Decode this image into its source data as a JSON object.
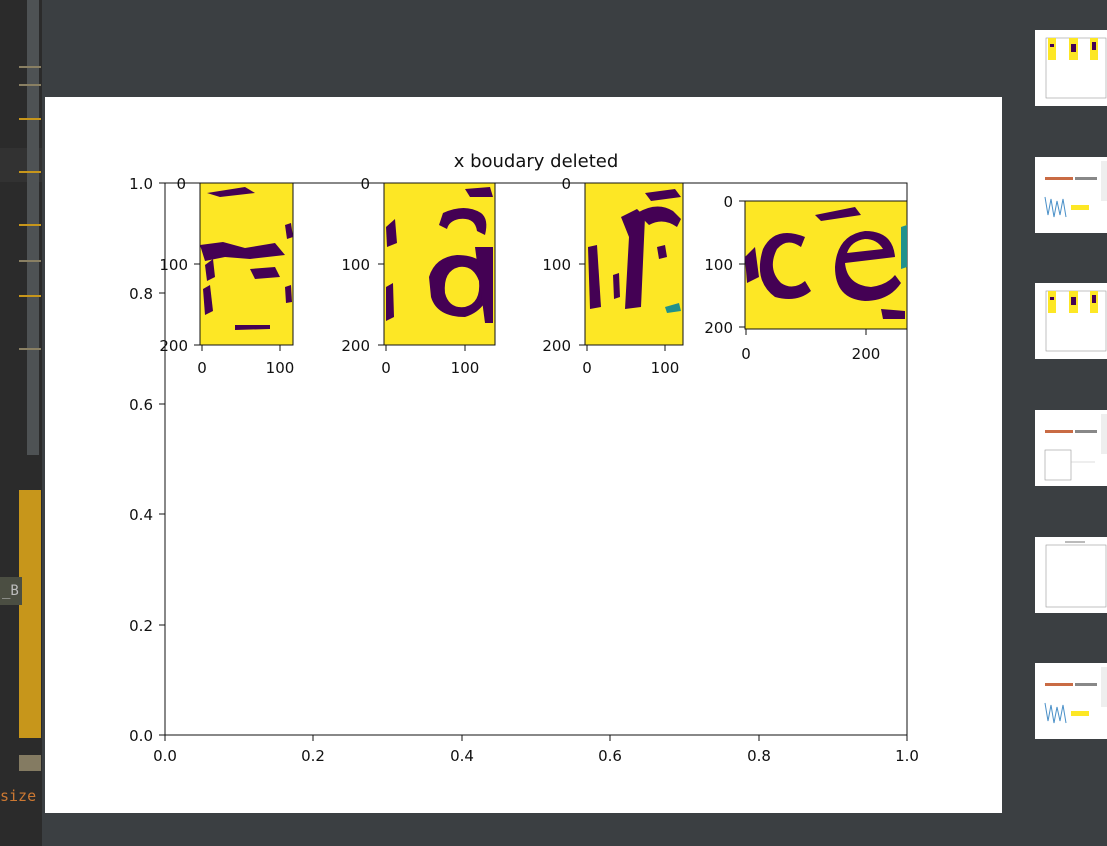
{
  "editor": {
    "fragment_b": "_B",
    "fragment_size": "size"
  },
  "plot": {
    "title": "x boudary deleted",
    "yticks": [
      "1.0",
      "0.8",
      "0.6",
      "0.4",
      "0.2",
      "0.0"
    ],
    "xticks": [
      "0.0",
      "0.2",
      "0.4",
      "0.6",
      "0.8",
      "1.0"
    ],
    "subplots": [
      {
        "yticks": [
          "0",
          "100",
          "200"
        ],
        "xticks": [
          "0",
          "100"
        ]
      },
      {
        "yticks": [
          "0",
          "100",
          "200"
        ],
        "xticks": [
          "0",
          "100"
        ]
      },
      {
        "yticks": [
          "0",
          "100",
          "200"
        ],
        "xticks": [
          "0",
          "100"
        ]
      },
      {
        "yticks": [
          "0",
          "100",
          "200"
        ],
        "xticks": [
          "0",
          "200"
        ]
      }
    ]
  },
  "colors": {
    "viridis_yellow": "#fde725",
    "viridis_purple": "#440154",
    "viridis_teal": "#21918c",
    "background": "#3b3f42",
    "accent_gold": "#c7961b"
  },
  "thumbnails": [
    "thumb-1",
    "thumb-2",
    "thumb-3",
    "thumb-4",
    "thumb-5",
    "thumb-6"
  ]
}
